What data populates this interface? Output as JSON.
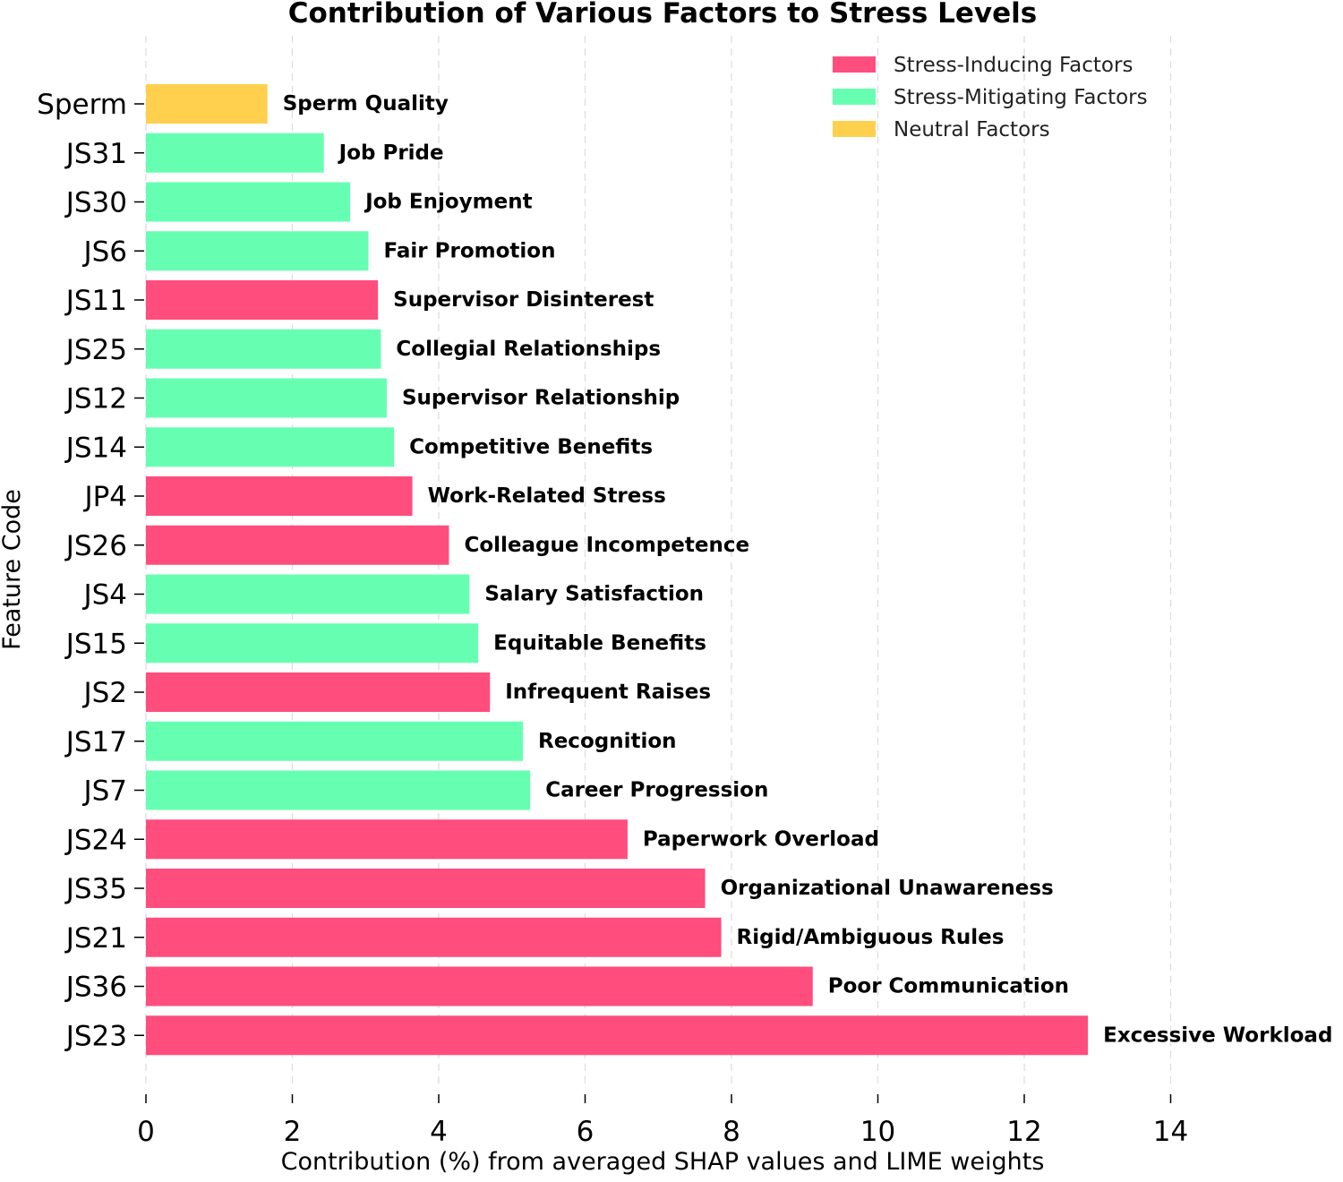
{
  "chart_data": {
    "type": "bar",
    "orientation": "horizontal",
    "title": "Contribution of Various Factors to Stress Levels",
    "xlabel": "Contribution (%) from averaged SHAP values and LIME weights",
    "ylabel": "Feature Code",
    "xlim": [
      0,
      14
    ],
    "xticks": [
      0,
      2,
      4,
      6,
      8,
      10,
      12,
      14
    ],
    "grid": "vertical dashed",
    "legend_position": "top-right",
    "colors": {
      "Stress-Inducing Factors": "#ff4d7d",
      "Stress-Mitigating Factors": "#66ffb2",
      "Neutral Factors": "#ffd04d"
    },
    "legend": [
      "Stress-Inducing Factors",
      "Stress-Mitigating Factors",
      "Neutral Factors"
    ],
    "bars": [
      {
        "code": "Sperm",
        "label": "Sperm Quality",
        "value": 1.66,
        "group": "Neutral Factors"
      },
      {
        "code": "JS31",
        "label": "Job Pride",
        "value": 2.43,
        "group": "Stress-Mitigating Factors"
      },
      {
        "code": "JS30",
        "label": "Job Enjoyment",
        "value": 2.79,
        "group": "Stress-Mitigating Factors"
      },
      {
        "code": "JS6",
        "label": "Fair Promotion",
        "value": 3.04,
        "group": "Stress-Mitigating Factors"
      },
      {
        "code": "JS11",
        "label": "Supervisor Disinterest",
        "value": 3.17,
        "group": "Stress-Inducing Factors"
      },
      {
        "code": "JS25",
        "label": "Collegial Relationships",
        "value": 3.21,
        "group": "Stress-Mitigating Factors"
      },
      {
        "code": "JS12",
        "label": "Supervisor Relationship",
        "value": 3.29,
        "group": "Stress-Mitigating Factors"
      },
      {
        "code": "JS14",
        "label": "Competitive Benefits",
        "value": 3.39,
        "group": "Stress-Mitigating Factors"
      },
      {
        "code": "JP4",
        "label": "Work-Related Stress",
        "value": 3.64,
        "group": "Stress-Inducing Factors"
      },
      {
        "code": "JS26",
        "label": "Colleague Incompetence",
        "value": 4.14,
        "group": "Stress-Inducing Factors"
      },
      {
        "code": "JS4",
        "label": "Salary Satisfaction",
        "value": 4.42,
        "group": "Stress-Mitigating Factors"
      },
      {
        "code": "JS15",
        "label": "Equitable Benefits",
        "value": 4.54,
        "group": "Stress-Mitigating Factors"
      },
      {
        "code": "JS2",
        "label": "Infrequent Raises",
        "value": 4.7,
        "group": "Stress-Inducing Factors"
      },
      {
        "code": "JS17",
        "label": "Recognition",
        "value": 5.15,
        "group": "Stress-Mitigating Factors"
      },
      {
        "code": "JS7",
        "label": "Career Progression",
        "value": 5.25,
        "group": "Stress-Mitigating Factors"
      },
      {
        "code": "JS24",
        "label": "Paperwork Overload",
        "value": 6.58,
        "group": "Stress-Inducing Factors"
      },
      {
        "code": "JS35",
        "label": "Organizational Unawareness",
        "value": 7.64,
        "group": "Stress-Inducing Factors"
      },
      {
        "code": "JS21",
        "label": "Rigid/Ambiguous Rules",
        "value": 7.86,
        "group": "Stress-Inducing Factors"
      },
      {
        "code": "JS36",
        "label": "Poor Communication",
        "value": 9.11,
        "group": "Stress-Inducing Factors"
      },
      {
        "code": "JS23",
        "label": "Excessive Workload",
        "value": 12.87,
        "group": "Stress-Inducing Factors"
      }
    ]
  }
}
